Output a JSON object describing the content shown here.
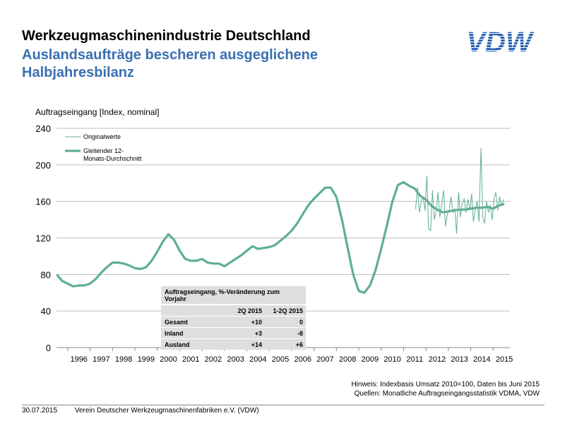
{
  "header": {
    "title": "Werkzeugmaschinenindustrie Deutschland",
    "subtitle": "Auslandsaufträge bescheren ausgeglichene Halbjahresbilanz",
    "logo_text": "VDW"
  },
  "chart_data": {
    "type": "line",
    "ylabel": "Auftragseingang [Index, nominal]",
    "ylim": [
      0,
      240
    ],
    "yticks": [
      "0",
      "40",
      "80",
      "120",
      "160",
      "200",
      "240"
    ],
    "xticks": [
      "1996",
      "1997",
      "1998",
      "1999",
      "2000",
      "2001",
      "2002",
      "2003",
      "2004",
      "2005",
      "2006",
      "2007",
      "2008",
      "2009",
      "2010",
      "2011",
      "2012",
      "2013",
      "2014",
      "2015"
    ],
    "legend_position": "top-left",
    "grid": true,
    "series": [
      {
        "name": "Originalwerte",
        "color": "#5fae96",
        "x": [
          2011.54,
          2011.62,
          2011.71,
          2011.79,
          2011.87,
          2011.96,
          2012.04,
          2012.12,
          2012.21,
          2012.29,
          2012.37,
          2012.46,
          2012.54,
          2012.62,
          2012.71,
          2012.79,
          2012.87,
          2012.96,
          2013.04,
          2013.12,
          2013.21,
          2013.29,
          2013.37,
          2013.46,
          2013.54,
          2013.62,
          2013.71,
          2013.79,
          2013.87,
          2013.96,
          2014.04,
          2014.12,
          2014.21,
          2014.29,
          2014.37,
          2014.46,
          2014.54,
          2014.62,
          2014.71,
          2014.79,
          2014.87,
          2014.96,
          2015.04,
          2015.12,
          2015.21,
          2015.29,
          2015.37,
          2015.46
        ],
        "values": [
          152,
          175,
          148,
          160,
          165,
          150,
          188,
          130,
          128,
          172,
          140,
          150,
          170,
          143,
          158,
          172,
          133,
          146,
          150,
          165,
          148,
          152,
          125,
          170,
          143,
          158,
          163,
          148,
          162,
          151,
          168,
          138,
          152,
          160,
          138,
          218,
          143,
          136,
          160,
          148,
          156,
          140,
          163,
          170,
          150,
          165,
          155,
          162
        ]
      },
      {
        "name": "Gleitender 12-Monats-Durchschnitt",
        "color": "#5fae96",
        "x": [
          1995.54,
          1995.75,
          1996.0,
          1996.25,
          1996.5,
          1996.75,
          1997.0,
          1997.25,
          1997.5,
          1997.75,
          1998.0,
          1998.25,
          1998.5,
          1998.75,
          1999.0,
          1999.25,
          1999.5,
          1999.75,
          2000.0,
          2000.25,
          2000.5,
          2000.75,
          2001.0,
          2001.25,
          2001.5,
          2001.75,
          2002.0,
          2002.25,
          2002.5,
          2002.75,
          2003.0,
          2003.25,
          2003.5,
          2003.75,
          2004.0,
          2004.25,
          2004.5,
          2004.75,
          2005.0,
          2005.25,
          2005.5,
          2005.75,
          2006.0,
          2006.25,
          2006.5,
          2006.75,
          2007.0,
          2007.25,
          2007.5,
          2007.75,
          2008.0,
          2008.25,
          2008.5,
          2008.75,
          2009.0,
          2009.25,
          2009.5,
          2009.75,
          2010.0,
          2010.25,
          2010.5,
          2010.75,
          2011.0,
          2011.25,
          2011.5,
          2011.75,
          2012.0,
          2012.25,
          2012.5,
          2012.75,
          2013.0,
          2013.25,
          2013.5,
          2013.75,
          2014.0,
          2014.25,
          2014.5,
          2014.75,
          2015.0,
          2015.2,
          2015.46
        ],
        "values": [
          79,
          73,
          70,
          67,
          68,
          68,
          70,
          75,
          82,
          88,
          93,
          93,
          92,
          90,
          87,
          86,
          88,
          95,
          105,
          116,
          124,
          118,
          106,
          97,
          95,
          95,
          97,
          93,
          92,
          92,
          89,
          93,
          97,
          101,
          106,
          111,
          108,
          109,
          110,
          112,
          117,
          122,
          128,
          136,
          146,
          156,
          163,
          169,
          175,
          175,
          165,
          140,
          110,
          80,
          62,
          60,
          68,
          85,
          108,
          133,
          160,
          178,
          181,
          177,
          174,
          166,
          162,
          155,
          151,
          148,
          149,
          150,
          151,
          151,
          152,
          153,
          153,
          154,
          152,
          155,
          157
        ]
      }
    ]
  },
  "table": {
    "title": "Auftragseingang, %-Veränderung zum Vorjahr",
    "columns": [
      "",
      "2Q 2015",
      "1-2Q 2015"
    ],
    "rows": [
      [
        "Gesamt",
        "+10",
        "0"
      ],
      [
        "Inland",
        "+3",
        "-8"
      ],
      [
        "Ausland",
        "+14",
        "+6"
      ]
    ]
  },
  "notes": {
    "line1": "Hinweis: Indexbasis Umsatz 2010=100, Daten bis Juni 2015",
    "line2": "Quellen: Monatliche Auftragseingangsstatistik VDMA, VDW"
  },
  "footer": {
    "date": "30.07.2015",
    "org": "Verein Deutscher Werkzeugmaschinenfabriken e.V. (VDW)"
  }
}
